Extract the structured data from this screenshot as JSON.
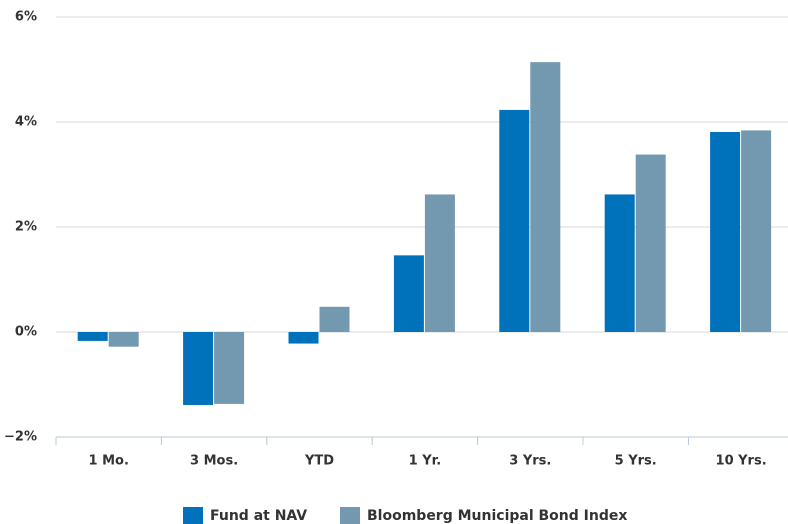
{
  "chart_data": {
    "type": "bar",
    "categories": [
      "1 Mo.",
      "3 Mos.",
      "YTD",
      "1 Yr.",
      "3 Yrs.",
      "5 Yrs.",
      "10 Yrs."
    ],
    "series": [
      {
        "name": "Fund at NAV",
        "color": "#0071bb",
        "values": [
          -0.17,
          -1.39,
          -0.22,
          1.46,
          4.23,
          2.62,
          3.81
        ]
      },
      {
        "name": "Bloomberg Municipal Bond Index",
        "color": "#7399b0",
        "values": [
          -0.28,
          -1.37,
          0.48,
          2.62,
          5.14,
          3.38,
          3.84
        ]
      }
    ],
    "ylim": [
      -2,
      6
    ],
    "yticks": [
      {
        "value": -2,
        "label": "−2%"
      },
      {
        "value": 0,
        "label": "0%"
      },
      {
        "value": 2,
        "label": "2%"
      },
      {
        "value": 4,
        "label": "4%"
      },
      {
        "value": 6,
        "label": "6%"
      }
    ],
    "grid": true,
    "legend": "bottom"
  }
}
